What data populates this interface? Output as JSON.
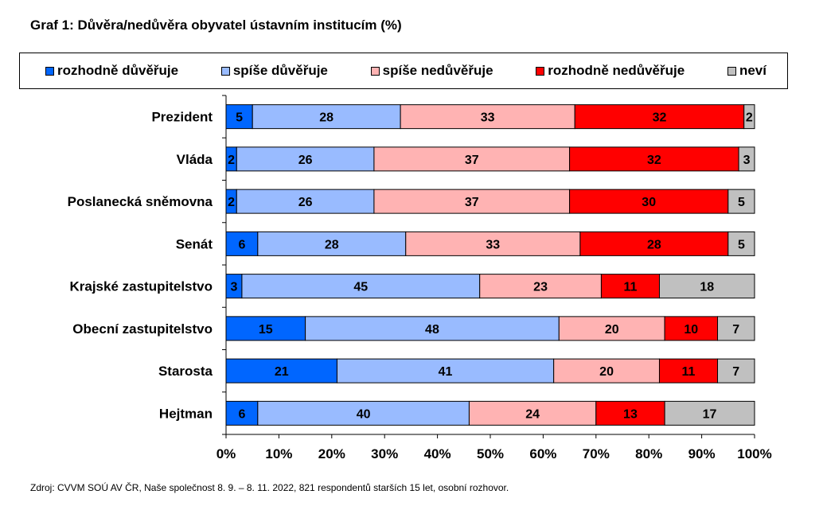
{
  "title": "Graf 1: Důvěra/nedůvěra obyvatel ústavním institucím (%)",
  "source": "Zdroj: CVVM SOÚ AV ČR, Naše společnost 8. 9. – 8. 11. 2022, 821 respondentů starších 15 let, osobní rozhovor.",
  "chart_data": {
    "type": "bar",
    "orientation": "horizontal",
    "stacked": true,
    "percent_stacked": true,
    "title": "Graf 1: Důvěra/nedůvěra obyvatel ústavním institucím (%)",
    "categories": [
      "Prezident",
      "Vláda",
      "Poslanecká sněmovna",
      "Senát",
      "Krajské zastupitelstvo",
      "Obecní zastupitelstvo",
      "Starosta",
      "Hejtman"
    ],
    "series": [
      {
        "name": "rozhodně důvěřuje",
        "color": "#0066ff",
        "values": [
          5,
          2,
          2,
          6,
          3,
          15,
          21,
          6
        ]
      },
      {
        "name": "spíše důvěřuje",
        "color": "#99bbff",
        "values": [
          28,
          26,
          26,
          28,
          45,
          48,
          41,
          40
        ]
      },
      {
        "name": "spíše nedůvěřuje",
        "color": "#ffb3b3",
        "values": [
          33,
          37,
          37,
          33,
          23,
          20,
          20,
          24
        ]
      },
      {
        "name": "rozhodně nedůvěřuje",
        "color": "#ff0000",
        "values": [
          32,
          32,
          30,
          28,
          11,
          10,
          11,
          13
        ]
      },
      {
        "name": "neví",
        "color": "#c0c0c0",
        "values": [
          2,
          3,
          5,
          5,
          18,
          7,
          7,
          17
        ]
      }
    ],
    "xlim": [
      0,
      100
    ],
    "xticks": [
      "0%",
      "10%",
      "20%",
      "30%",
      "40%",
      "50%",
      "60%",
      "70%",
      "80%",
      "90%",
      "100%"
    ],
    "grid": false,
    "legend_position": "top"
  }
}
